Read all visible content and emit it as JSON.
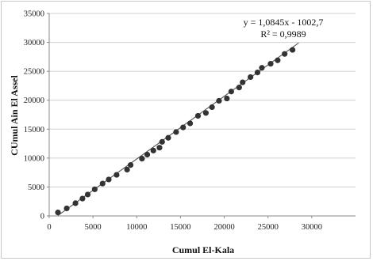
{
  "chart_data": {
    "type": "scatter",
    "title": "",
    "xlabel": "Cumul El-Kala",
    "ylabel": "CUmul Ain El Assel",
    "xlim": [
      0,
      35000
    ],
    "ylim": [
      0,
      35000
    ],
    "xticks": [
      0,
      5000,
      10000,
      15000,
      20000,
      25000,
      30000
    ],
    "yticks": [
      0,
      5000,
      10000,
      15000,
      20000,
      25000,
      30000,
      35000
    ],
    "grid": "horizontal",
    "legend": "none",
    "trendline": {
      "type": "linear",
      "slope": 1.0845,
      "intercept": -1002.7,
      "equation": "y = 1,0845x - 1002,7",
      "r2": "R² = 0,9989"
    },
    "marker_color": "#333333",
    "line_color": "#555555",
    "points": [
      [
        1000,
        600
      ],
      [
        2000,
        1300
      ],
      [
        3000,
        2200
      ],
      [
        3800,
        3000
      ],
      [
        4400,
        3700
      ],
      [
        5200,
        4600
      ],
      [
        6100,
        5600
      ],
      [
        6800,
        6300
      ],
      [
        7700,
        7100
      ],
      [
        8900,
        8000
      ],
      [
        9300,
        8800
      ],
      [
        10600,
        9900
      ],
      [
        11200,
        10600
      ],
      [
        11900,
        11300
      ],
      [
        12600,
        11800
      ],
      [
        12900,
        12800
      ],
      [
        13600,
        13500
      ],
      [
        14500,
        14500
      ],
      [
        15300,
        15300
      ],
      [
        16100,
        16000
      ],
      [
        17000,
        17300
      ],
      [
        17900,
        17800
      ],
      [
        18600,
        18800
      ],
      [
        19400,
        19900
      ],
      [
        20300,
        20300
      ],
      [
        20800,
        21500
      ],
      [
        21700,
        22200
      ],
      [
        22100,
        23100
      ],
      [
        23000,
        24000
      ],
      [
        23800,
        24800
      ],
      [
        24300,
        25600
      ],
      [
        25300,
        26300
      ],
      [
        26100,
        26900
      ],
      [
        26900,
        28000
      ],
      [
        27800,
        28700
      ]
    ]
  }
}
